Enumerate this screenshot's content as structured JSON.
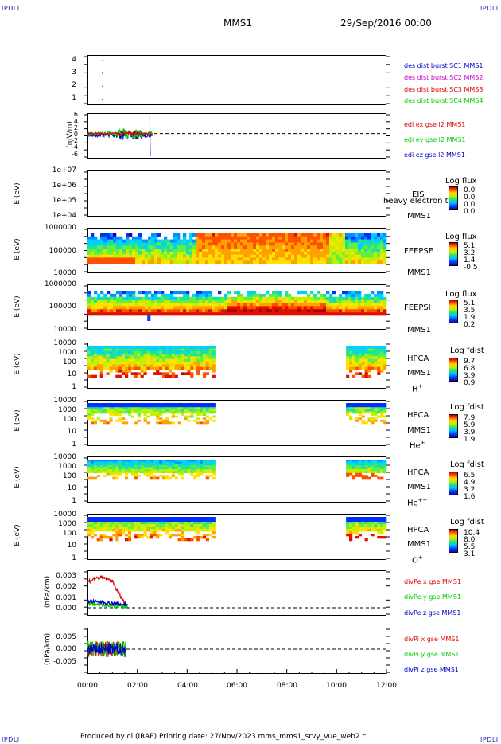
{
  "corners": {
    "tl": "IPDLI",
    "tr": "IPDLI",
    "bl": "IPDLI",
    "br": "IPDLI"
  },
  "header": {
    "mission": "MMS1",
    "datetime": "29/Sep/2016 00:00"
  },
  "footer": {
    "text": "Produced by cl (IRAP)   Printing date: 27/Nov/2023   mms_mms1_srvy_vue_web2.cl"
  },
  "colors": {
    "red": "#dd0000",
    "green": "#00cc00",
    "blue": "#0000cc",
    "magenta": "#cc00cc"
  },
  "chart_data": [
    {
      "type": "scatter",
      "id": "burst",
      "yticks": [
        "4",
        "3",
        "2",
        "1"
      ],
      "legend": [
        {
          "name": "des dist burst SC1 MMS1",
          "color": "#0000cc"
        },
        {
          "name": "des dist burst SC2 MMS2",
          "color": "#cc00cc"
        },
        {
          "name": "des dist burst SC3 MMS3",
          "color": "#dd0000"
        },
        {
          "name": "des dist burst SC4 MMS4",
          "color": "#00cc00"
        }
      ],
      "points": [
        {
          "x": "00:35",
          "y": 4
        },
        {
          "x": "00:35",
          "y": 3
        },
        {
          "x": "00:35",
          "y": 2
        },
        {
          "x": "00:35",
          "y": 1
        }
      ]
    },
    {
      "type": "line",
      "id": "edi",
      "ylabel": "(mV/m)",
      "yticks": [
        "6",
        "4",
        "2",
        "0",
        "-2",
        "-4",
        "-6"
      ],
      "legend": [
        {
          "name": "edi ex gse l2 MMS1",
          "color": "#dd0000"
        },
        {
          "name": "edi ey gse l2 MMS1",
          "color": "#00cc00"
        },
        {
          "name": "edi ez gse l2 MMS1",
          "color": "#0000cc"
        }
      ]
    },
    {
      "type": "heatmap",
      "id": "eis",
      "ylabel": "E (eV)",
      "yticks": [
        "1e+07",
        "1e+06",
        "1e+05",
        "1e+04"
      ],
      "labels": [
        "EIS",
        "MMS1"
      ],
      "overlay": "heavy electron to",
      "cbar_title": "Log flux",
      "cbar_values": [
        "0.0",
        "0.0",
        "0.0",
        "0.0"
      ]
    },
    {
      "type": "heatmap",
      "id": "feepse",
      "ylabel": "E (eV)",
      "yticks": [
        "1000000",
        "100000",
        "10000"
      ],
      "labels": [
        "FEEPSE",
        "MMS1"
      ],
      "cbar_title": "Log flux",
      "cbar_values": [
        "5.1",
        "3.2",
        "1.4",
        "-0.5"
      ]
    },
    {
      "type": "heatmap",
      "id": "feepsi",
      "ylabel": "E (eV)",
      "yticks": [
        "1000000",
        "100000",
        "10000"
      ],
      "labels": [
        "FEEPSI",
        "MMS1"
      ],
      "cbar_title": "Log flux",
      "cbar_values": [
        "5.1",
        "3.5",
        "1.9",
        "0.2"
      ]
    },
    {
      "type": "heatmap",
      "id": "hpca_h",
      "ylabel": "E (eV)",
      "yticks": [
        "10000",
        "1000",
        "100",
        "10",
        "1"
      ],
      "labels": [
        "HPCA",
        "MMS1"
      ],
      "species": "H",
      "species_sup": "+",
      "cbar_title": "Log fdist",
      "cbar_values": [
        "9.7",
        "6.8",
        "3.9",
        "0.9"
      ]
    },
    {
      "type": "heatmap",
      "id": "hpca_he",
      "ylabel": "E (eV)",
      "yticks": [
        "10000",
        "1000",
        "100",
        "10",
        "1"
      ],
      "labels": [
        "HPCA",
        "MMS1"
      ],
      "species": "He",
      "species_sup": "+",
      "cbar_title": "Log fdist",
      "cbar_values": [
        "7.9",
        "5.9",
        "3.9",
        "1.9"
      ]
    },
    {
      "type": "heatmap",
      "id": "hpca_hepp",
      "ylabel": "E (eV)",
      "yticks": [
        "10000",
        "1000",
        "100",
        "10",
        "1"
      ],
      "labels": [
        "HPCA",
        "MMS1"
      ],
      "species": "He",
      "species_sup": "++",
      "cbar_title": "Log fdist",
      "cbar_values": [
        "6.5",
        "4.9",
        "3.2",
        "1.6"
      ]
    },
    {
      "type": "heatmap",
      "id": "hpca_o",
      "ylabel": "E (eV)",
      "yticks": [
        "10000",
        "1000",
        "100",
        "10",
        "1"
      ],
      "labels": [
        "HPCA",
        "MMS1"
      ],
      "species": "O",
      "species_sup": "+",
      "cbar_title": "Log fdist",
      "cbar_values": [
        "10.4",
        "8.0",
        "5.5",
        "3.1"
      ]
    },
    {
      "type": "line",
      "id": "divpe",
      "ylabel": "(nPa/km)",
      "yticks": [
        "0.003",
        "0.002",
        "0.001",
        "0.000"
      ],
      "legend": [
        {
          "name": "divPe x gse MMS1",
          "color": "#dd0000"
        },
        {
          "name": "divPe y gse MMS1",
          "color": "#00cc00"
        },
        {
          "name": "divPe z gse MMS1",
          "color": "#0000cc"
        }
      ]
    },
    {
      "type": "line",
      "id": "divpi",
      "ylabel": "(nPa/km)",
      "yticks": [
        "0.005",
        "0.000",
        "-0.005"
      ],
      "legend": [
        {
          "name": "divPi x gse MMS1",
          "color": "#dd0000"
        },
        {
          "name": "divPi y gse MMS1",
          "color": "#00cc00"
        },
        {
          "name": "divPi z gse MMS1",
          "color": "#0000cc"
        }
      ]
    }
  ],
  "xaxis": {
    "ticks": [
      "00:00",
      "02:00",
      "04:00",
      "06:00",
      "08:00",
      "10:00",
      "12:00"
    ]
  }
}
